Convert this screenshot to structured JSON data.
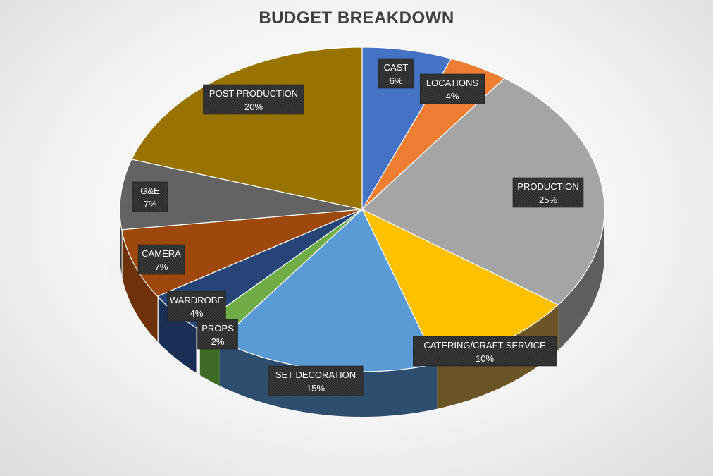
{
  "chart_data": {
    "type": "pie",
    "title": "BUDGET BREAKDOWN",
    "slices": [
      {
        "label": "CAST",
        "value": 6,
        "display": "6%",
        "color": "#4472C4",
        "side": "#2F528F"
      },
      {
        "label": "LOCATIONS",
        "value": 4,
        "display": "4%",
        "color": "#ED7D31",
        "side": "#B05A1F"
      },
      {
        "label": "PRODUCTION",
        "value": 25,
        "display": "25%",
        "color": "#A5A5A5",
        "side": "#5E5E5E"
      },
      {
        "label": "CATERING/CRAFT SERVICE",
        "value": 10,
        "display": "10%",
        "color": "#FFC000",
        "side": "#6B5426"
      },
      {
        "label": "SET DECORATION",
        "value": 15,
        "display": "15%",
        "color": "#5B9BD5",
        "side": "#2E4E6F"
      },
      {
        "label": "PROPS",
        "value": 2,
        "display": "2%",
        "color": "#70AD47",
        "side": "#3E6B25"
      },
      {
        "label": "WARDROBE",
        "value": 4,
        "display": "4%",
        "color": "#264478",
        "side": "#1A2F55"
      },
      {
        "label": "CAMERA",
        "value": 7,
        "display": "7%",
        "color": "#9E480E",
        "side": "#6E3109"
      },
      {
        "label": "G&E",
        "value": 7,
        "display": "7%",
        "color": "#636363",
        "side": "#3E3E3E"
      },
      {
        "label": "POST PRODUCTION",
        "value": 20,
        "display": "20%",
        "color": "#997300",
        "side": "#6B5200"
      }
    ]
  }
}
